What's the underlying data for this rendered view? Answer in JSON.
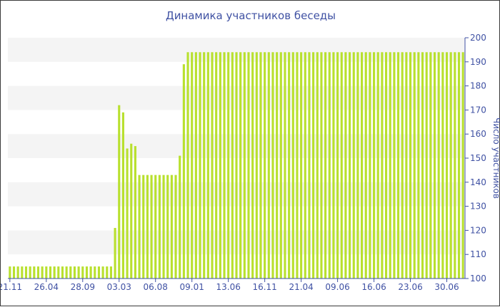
{
  "chart_data": {
    "type": "bar",
    "title": "Динамика участников беседы",
    "ylabel": "Число участников",
    "xlabel": "",
    "ylim": [
      100,
      200
    ],
    "yticks": [
      100,
      110,
      120,
      130,
      140,
      150,
      160,
      170,
      180,
      190,
      200
    ],
    "y_axis_side": "right",
    "grid": "alternating horizontal bands",
    "xtick_labels": [
      "21.11",
      "26.04",
      "28.09",
      "03.03",
      "06.08",
      "09.01",
      "13.06",
      "16.11",
      "21.04",
      "09.06",
      "16.06",
      "23.06",
      "30.06"
    ],
    "xtick_bar_index": [
      0,
      9,
      18,
      27,
      36,
      45,
      54,
      63,
      72,
      81,
      90,
      99,
      108
    ],
    "bar_color": "#b8e02e",
    "values": [
      105,
      105,
      105,
      105,
      105,
      105,
      105,
      105,
      105,
      105,
      105,
      105,
      105,
      105,
      105,
      105,
      105,
      105,
      105,
      105,
      105,
      105,
      105,
      105,
      105,
      105,
      121,
      172,
      169,
      154,
      156,
      155,
      143,
      143,
      143,
      143,
      143,
      143,
      143,
      143,
      143,
      143,
      151,
      189,
      194,
      194,
      194,
      194,
      194,
      194,
      194,
      194,
      194,
      194,
      194,
      194,
      194,
      194,
      194,
      194,
      194,
      194,
      194,
      194,
      194,
      194,
      194,
      194,
      194,
      194,
      194,
      194,
      194,
      194,
      194,
      194,
      194,
      194,
      194,
      194,
      194,
      194,
      194,
      194,
      194,
      194,
      194,
      194,
      194,
      194,
      194,
      194,
      194,
      194,
      194,
      194,
      194,
      194,
      194,
      194,
      194,
      194,
      194,
      194,
      194,
      194,
      194,
      194,
      194,
      194,
      194,
      194,
      194
    ]
  }
}
